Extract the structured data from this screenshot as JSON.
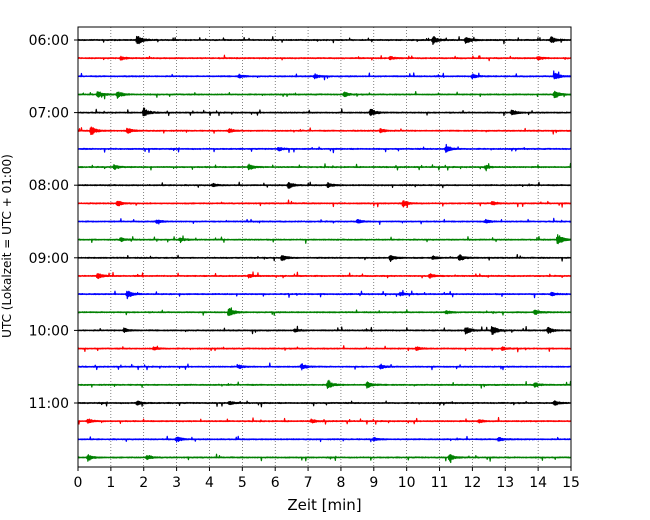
{
  "chart_data": {
    "type": "line",
    "title": "",
    "xlabel": "Zeit  [min]",
    "ylabel": "UTC (Lokalzeit = UTC + 01:00)",
    "xlim": [
      0,
      15
    ],
    "x_ticks": [
      "0",
      "1",
      "2",
      "3",
      "4",
      "5",
      "6",
      "7",
      "8",
      "9",
      "10",
      "11",
      "12",
      "13",
      "14",
      "15"
    ],
    "y_tick_labels": [
      "06:00",
      "07:00",
      "08:00",
      "09:00",
      "10:00",
      "11:00"
    ],
    "trace_interval_minutes": 15,
    "trace_colors": [
      "#000000",
      "#ff0000",
      "#0000ff",
      "#008000"
    ],
    "grid": "vertical dotted",
    "series": [
      {
        "start": "06:00",
        "events": [
          [
            1.8,
            1.0
          ],
          [
            10.8,
            0.7
          ],
          [
            11.8,
            0.6
          ],
          [
            14.4,
            0.6
          ]
        ]
      },
      {
        "start": "06:15",
        "events": [
          [
            1.3,
            0.3
          ],
          [
            9.5,
            0.3
          ],
          [
            14.0,
            0.3
          ]
        ]
      },
      {
        "start": "06:30",
        "events": [
          [
            4.9,
            0.3
          ],
          [
            7.2,
            0.4
          ],
          [
            12.0,
            0.4
          ],
          [
            14.5,
            0.7
          ]
        ]
      },
      {
        "start": "06:45",
        "events": [
          [
            0.6,
            0.6
          ],
          [
            1.2,
            0.6
          ],
          [
            8.1,
            0.4
          ],
          [
            14.5,
            0.7
          ]
        ]
      },
      {
        "start": "07:00",
        "events": [
          [
            2.0,
            0.8
          ],
          [
            8.9,
            0.7
          ],
          [
            13.2,
            0.5
          ]
        ]
      },
      {
        "start": "07:15",
        "events": [
          [
            0.4,
            0.8
          ],
          [
            1.5,
            0.5
          ],
          [
            4.6,
            0.4
          ],
          [
            9.2,
            0.4
          ]
        ]
      },
      {
        "start": "07:30",
        "events": [
          [
            6.1,
            0.3
          ],
          [
            11.2,
            0.7
          ]
        ]
      },
      {
        "start": "07:45",
        "events": [
          [
            1.1,
            0.4
          ],
          [
            5.2,
            0.5
          ],
          [
            12.4,
            0.3
          ]
        ]
      },
      {
        "start": "08:00",
        "events": [
          [
            6.4,
            0.6
          ],
          [
            7.6,
            0.4
          ],
          [
            4.1,
            0.3
          ]
        ]
      },
      {
        "start": "08:15",
        "events": [
          [
            1.2,
            0.6
          ],
          [
            9.9,
            0.5
          ],
          [
            12.6,
            0.3
          ]
        ]
      },
      {
        "start": "08:30",
        "events": [
          [
            2.4,
            0.3
          ],
          [
            8.5,
            0.3
          ],
          [
            12.4,
            0.3
          ]
        ]
      },
      {
        "start": "08:45",
        "events": [
          [
            1.3,
            0.3
          ],
          [
            3.1,
            0.3
          ],
          [
            14.6,
            1.0
          ]
        ]
      },
      {
        "start": "09:00",
        "events": [
          [
            6.2,
            0.5
          ],
          [
            9.5,
            0.6
          ],
          [
            11.6,
            0.6
          ],
          [
            10.8,
            0.3
          ]
        ]
      },
      {
        "start": "09:15",
        "events": [
          [
            0.6,
            0.5
          ],
          [
            5.2,
            0.3
          ],
          [
            10.7,
            0.4
          ]
        ]
      },
      {
        "start": "09:30",
        "events": [
          [
            1.5,
            0.7
          ],
          [
            9.8,
            0.3
          ],
          [
            14.4,
            0.3
          ]
        ]
      },
      {
        "start": "09:45",
        "events": [
          [
            4.6,
            0.8
          ],
          [
            13.9,
            0.5
          ],
          [
            11.2,
            0.3
          ]
        ]
      },
      {
        "start": "10:00",
        "events": [
          [
            1.4,
            0.4
          ],
          [
            6.6,
            0.3
          ],
          [
            11.8,
            0.7
          ],
          [
            12.6,
            0.9
          ],
          [
            14.3,
            0.6
          ]
        ]
      },
      {
        "start": "10:15",
        "events": [
          [
            2.3,
            0.3
          ],
          [
            10.3,
            0.3
          ],
          [
            12.9,
            0.3
          ]
        ]
      },
      {
        "start": "10:30",
        "events": [
          [
            6.8,
            0.5
          ],
          [
            9.2,
            0.4
          ],
          [
            4.9,
            0.3
          ]
        ]
      },
      {
        "start": "10:45",
        "events": [
          [
            7.6,
            0.8
          ],
          [
            8.8,
            0.6
          ],
          [
            13.9,
            0.4
          ]
        ]
      },
      {
        "start": "11:00",
        "events": [
          [
            1.8,
            0.4
          ],
          [
            4.6,
            0.3
          ],
          [
            14.5,
            0.4
          ]
        ]
      },
      {
        "start": "11:15",
        "events": [
          [
            0.3,
            0.4
          ],
          [
            7.1,
            0.3
          ],
          [
            12.2,
            0.3
          ]
        ]
      },
      {
        "start": "11:30",
        "events": [
          [
            3.0,
            0.5
          ],
          [
            9.0,
            0.3
          ],
          [
            12.8,
            0.4
          ]
        ]
      },
      {
        "start": "11:45",
        "events": [
          [
            0.3,
            0.6
          ],
          [
            2.1,
            0.4
          ],
          [
            11.3,
            0.6
          ]
        ]
      }
    ]
  }
}
